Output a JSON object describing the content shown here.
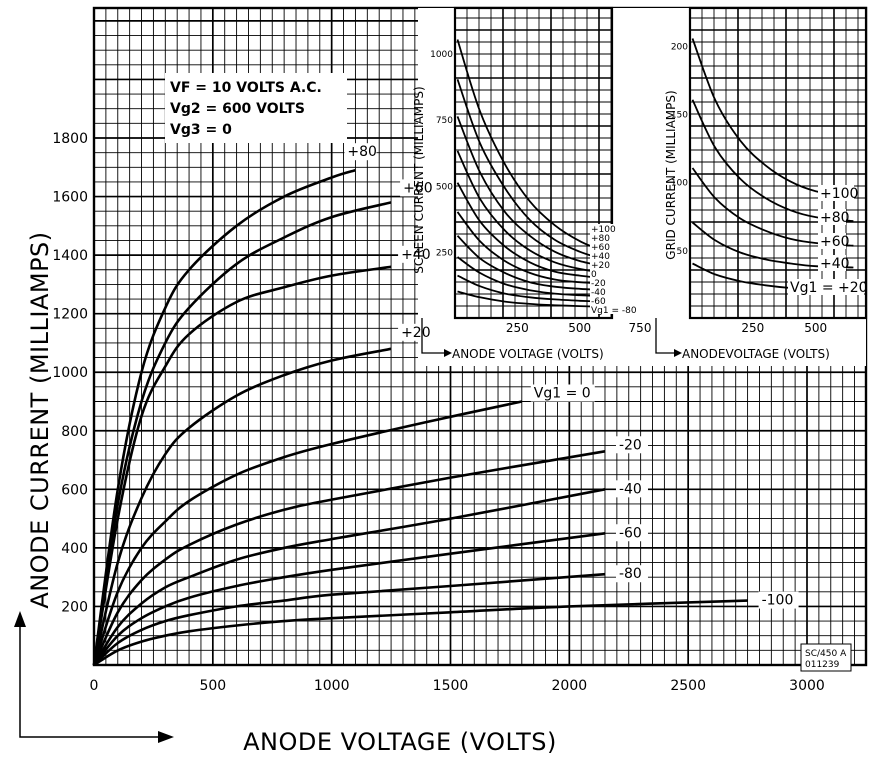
{
  "conditions": {
    "line1": "VF = 10 VOLTS A.C.",
    "line2": "Vg2 = 600 VOLTS",
    "line3": "Vg3 = 0"
  },
  "stamp": {
    "line1": "SC/450 A",
    "line2": "011239"
  },
  "colors": {
    "ink": "#000000",
    "paper": "#ffffff"
  },
  "chart_data": [
    {
      "type": "line",
      "xlabel": "ANODE VOLTAGE (VOLTS)",
      "ylabel": "ANODE CURRENT (MILLIAMPS)",
      "xlim": [
        0,
        3250
      ],
      "ylim": [
        0,
        1900
      ],
      "xticks": [
        0,
        500,
        1000,
        1500,
        2000,
        2500,
        3000
      ],
      "yticks": [
        200,
        400,
        600,
        800,
        1000,
        1200,
        1400,
        1600,
        1800
      ],
      "grid": true,
      "series": [
        {
          "name": "+80",
          "x": [
            0,
            100,
            200,
            300,
            400,
            600,
            800,
            1000,
            1100
          ],
          "y": [
            0,
            600,
            1000,
            1220,
            1350,
            1500,
            1600,
            1665,
            1690
          ]
        },
        {
          "name": "+60",
          "x": [
            0,
            100,
            200,
            300,
            400,
            600,
            800,
            1000,
            1250
          ],
          "y": [
            0,
            550,
            900,
            1100,
            1220,
            1370,
            1460,
            1530,
            1580
          ]
        },
        {
          "name": "+40",
          "x": [
            0,
            100,
            200,
            300,
            400,
            600,
            800,
            1000,
            1250
          ],
          "y": [
            0,
            500,
            850,
            1020,
            1130,
            1240,
            1290,
            1330,
            1360
          ]
        },
        {
          "name": "+20",
          "x": [
            0,
            100,
            200,
            300,
            400,
            600,
            800,
            1000,
            1250
          ],
          "y": [
            0,
            350,
            570,
            720,
            810,
            920,
            990,
            1040,
            1080
          ]
        },
        {
          "name": "0",
          "x": [
            0,
            100,
            200,
            300,
            400,
            600,
            800,
            1000,
            1400,
            1800
          ],
          "y": [
            0,
            250,
            400,
            490,
            560,
            650,
            710,
            755,
            830,
            900
          ]
        },
        {
          "name": "-20",
          "x": [
            0,
            100,
            200,
            300,
            400,
            600,
            800,
            1000,
            1500,
            2150
          ],
          "y": [
            0,
            180,
            290,
            360,
            410,
            480,
            530,
            565,
            640,
            730
          ]
        },
        {
          "name": "-40",
          "x": [
            0,
            100,
            200,
            300,
            400,
            600,
            800,
            1000,
            1500,
            2150
          ],
          "y": [
            0,
            130,
            210,
            265,
            300,
            360,
            400,
            430,
            500,
            600
          ]
        },
        {
          "name": "-60",
          "x": [
            0,
            100,
            200,
            300,
            400,
            600,
            800,
            1000,
            1500,
            2150
          ],
          "y": [
            0,
            100,
            160,
            200,
            230,
            270,
            300,
            325,
            380,
            450
          ]
        },
        {
          "name": "-80",
          "x": [
            0,
            100,
            200,
            300,
            400,
            600,
            800,
            1000,
            1500,
            2150
          ],
          "y": [
            0,
            75,
            120,
            150,
            170,
            200,
            220,
            240,
            270,
            310
          ]
        },
        {
          "name": "-100",
          "x": [
            0,
            100,
            200,
            300,
            400,
            600,
            800,
            1000,
            1500,
            2000,
            2750
          ],
          "y": [
            0,
            50,
            80,
            100,
            115,
            135,
            150,
            160,
            180,
            200,
            220
          ]
        }
      ],
      "series_labels": [
        "+80",
        "+60",
        "+40",
        "+20",
        "Vg1 = 0",
        "-20",
        "-40",
        "-60",
        "-80",
        "-100"
      ]
    },
    {
      "type": "line",
      "xlabel": "ANODE VOLTAGE (VOLTS)",
      "ylabel": "SCREEN CURRENT (MILLIAMPS)",
      "xlim": [
        0,
        750
      ],
      "ylim": [
        0,
        1150
      ],
      "xticks": [
        250,
        500,
        750
      ],
      "yticks": [
        250,
        500,
        750,
        1000
      ],
      "grid": true,
      "series": [
        {
          "name": "+100",
          "x": [
            10,
            100,
            200,
            300,
            400,
            500,
            600
          ],
          "y": [
            1050,
            780,
            580,
            440,
            350,
            290,
            250
          ]
        },
        {
          "name": "+80",
          "x": [
            10,
            100,
            200,
            300,
            400,
            500,
            600
          ],
          "y": [
            900,
            660,
            490,
            370,
            295,
            250,
            220
          ]
        },
        {
          "name": "+60",
          "x": [
            10,
            100,
            200,
            300,
            400,
            500,
            600
          ],
          "y": [
            760,
            550,
            400,
            310,
            250,
            215,
            195
          ]
        },
        {
          "name": "+40",
          "x": [
            10,
            100,
            200,
            300,
            400,
            500,
            600
          ],
          "y": [
            630,
            450,
            330,
            255,
            210,
            185,
            170
          ]
        },
        {
          "name": "+20",
          "x": [
            10,
            100,
            200,
            300,
            400,
            500,
            600
          ],
          "y": [
            510,
            365,
            270,
            210,
            175,
            160,
            150
          ]
        },
        {
          "name": "0",
          "x": [
            10,
            100,
            200,
            300,
            400,
            500,
            600
          ],
          "y": [
            400,
            290,
            215,
            170,
            145,
            135,
            130
          ]
        },
        {
          "name": "-20",
          "x": [
            10,
            100,
            200,
            300,
            400,
            500,
            600
          ],
          "y": [
            310,
            225,
            170,
            135,
            118,
            110,
            105
          ]
        },
        {
          "name": "-40",
          "x": [
            10,
            100,
            200,
            300,
            400,
            500,
            600
          ],
          "y": [
            230,
            170,
            128,
            105,
            92,
            86,
            82
          ]
        },
        {
          "name": "-60",
          "x": [
            10,
            100,
            200,
            300,
            400,
            500,
            600
          ],
          "y": [
            160,
            120,
            92,
            78,
            70,
            65,
            62
          ]
        },
        {
          "name": "-80",
          "x": [
            10,
            100,
            200,
            300,
            400,
            500,
            600
          ],
          "y": [
            100,
            78,
            62,
            53,
            48,
            45,
            42
          ]
        }
      ],
      "series_labels": [
        "+100",
        "+80",
        "+60",
        "+40",
        "+20",
        "0",
        "-20",
        "-40",
        "-60",
        "Vg1 = -80"
      ]
    },
    {
      "type": "line",
      "xlabel": "ANODEVOLTAGE (VOLTS)",
      "ylabel": "GRID CURRENT (MILLIAMPS)",
      "xlim": [
        0,
        700
      ],
      "ylim": [
        0,
        220
      ],
      "xticks": [
        250,
        500
      ],
      "yticks": [
        50,
        100,
        150,
        200
      ],
      "grid": true,
      "series": [
        {
          "name": "+100",
          "x": [
            10,
            100,
            200,
            300,
            400,
            500,
            650
          ],
          "y": [
            205,
            160,
            130,
            112,
            100,
            93,
            88
          ]
        },
        {
          "name": "+80",
          "x": [
            10,
            100,
            200,
            300,
            400,
            500,
            650
          ],
          "y": [
            160,
            125,
            102,
            88,
            79,
            74,
            71
          ]
        },
        {
          "name": "+60",
          "x": [
            10,
            100,
            200,
            300,
            400,
            500,
            650
          ],
          "y": [
            110,
            88,
            73,
            64,
            58,
            55,
            53
          ]
        },
        {
          "name": "+40",
          "x": [
            10,
            100,
            200,
            300,
            400,
            500,
            650
          ],
          "y": [
            70,
            57,
            48,
            43,
            40,
            38,
            37
          ]
        },
        {
          "name": "+20",
          "x": [
            10,
            100,
            200,
            300,
            400,
            500,
            650
          ],
          "y": [
            40,
            32,
            27,
            24,
            22,
            21,
            20
          ]
        }
      ],
      "series_labels": [
        "+100",
        "+80",
        "+60",
        "+40",
        "Vg1 = +20"
      ]
    }
  ]
}
